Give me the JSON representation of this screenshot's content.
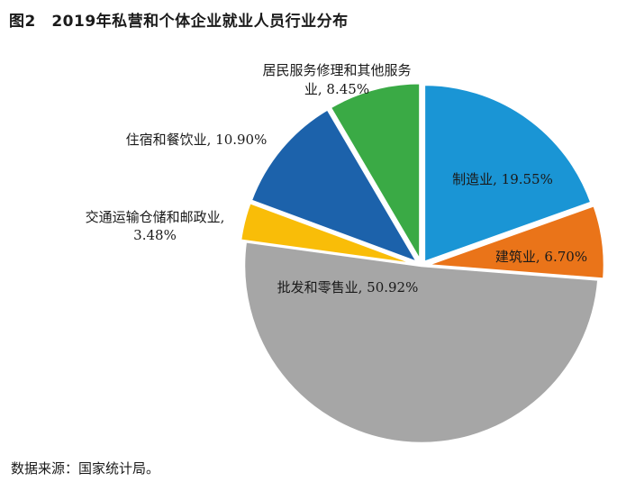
{
  "figure": {
    "title": "图2　2019年私营和个体企业就业人员行业分布",
    "source": "数据来源：国家统计局。"
  },
  "chart_data": {
    "type": "pie",
    "title": "2019年私营和个体企业就业人员行业分布",
    "unit": "%",
    "start": "12 o'clock, clockwise",
    "slices": [
      {
        "name": "制造业",
        "value": 19.55,
        "display": "19.55%",
        "color": "#1a95d5",
        "label_lines": [
          "制造业, 19.55%"
        ]
      },
      {
        "name": "建筑业",
        "value": 6.7,
        "display": "6.70%",
        "color": "#ea7419",
        "label_lines": [
          "建筑业, 6.70%"
        ]
      },
      {
        "name": "批发和零售业",
        "value": 50.92,
        "display": "50.92%",
        "color": "#a6a6a6",
        "label_lines": [
          "批发和零售业, 50.92%"
        ]
      },
      {
        "name": "交通运输仓储和邮政业",
        "value": 3.48,
        "display": "3.48%",
        "color": "#f9bd08",
        "label_lines": [
          "交通运输仓储和邮政业,",
          "3.48%"
        ]
      },
      {
        "name": "住宿和餐饮业",
        "value": 10.9,
        "display": "10.90%",
        "color": "#1c62ab",
        "label_lines": [
          "住宿和餐饮业, 10.90%"
        ]
      },
      {
        "name": "居民服务修理和其他服务业",
        "value": 8.45,
        "display": "8.45%",
        "color": "#3aaa45",
        "label_lines": [
          "居民服务修理和其他服务",
          "业, 8.45%"
        ]
      }
    ]
  }
}
